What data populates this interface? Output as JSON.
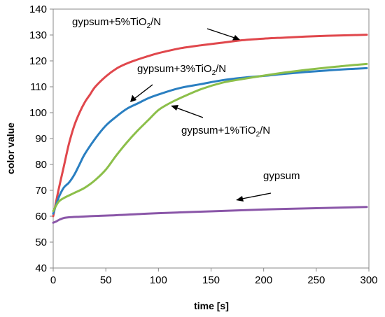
{
  "chart_data": {
    "type": "line",
    "title": "",
    "xlabel": "time [s]",
    "ylabel": "color value",
    "xlim": [
      0,
      300
    ],
    "ylim": [
      40,
      140
    ],
    "xticks": [
      0,
      50,
      100,
      150,
      200,
      250,
      300
    ],
    "yticks": [
      40,
      50,
      60,
      70,
      80,
      90,
      100,
      110,
      120,
      130,
      140
    ],
    "grid": false,
    "legend": "none",
    "series": [
      {
        "name": "gypsum+5%TiO2/N",
        "color": "#e0474c",
        "x": [
          0,
          5,
          10,
          15,
          20,
          25,
          30,
          35,
          40,
          50,
          60,
          70,
          80,
          90,
          100,
          120,
          140,
          160,
          180,
          200,
          220,
          240,
          260,
          280,
          298
        ],
        "y": [
          60,
          70,
          79,
          88,
          95,
          100,
          104,
          107,
          110,
          114,
          117,
          119,
          120.5,
          121.8,
          123,
          124.8,
          126,
          127,
          128,
          128.6,
          129,
          129.4,
          129.7,
          129.9,
          130.1
        ]
      },
      {
        "name": "gypsum+3%TiO2/N",
        "color": "#2a7fc1",
        "x": [
          0,
          5,
          10,
          15,
          20,
          25,
          30,
          40,
          50,
          60,
          70,
          80,
          90,
          100,
          120,
          140,
          160,
          180,
          200,
          220,
          240,
          260,
          280,
          298
        ],
        "y": [
          61,
          67,
          71,
          73,
          76,
          80,
          84,
          90,
          95,
          98.5,
          101.5,
          103.5,
          105.5,
          107,
          109.5,
          111,
          112.5,
          113.5,
          114.2,
          115,
          115.7,
          116.3,
          116.8,
          117.2
        ]
      },
      {
        "name": "gypsum+1%TiO2/N",
        "color": "#8cbf4a",
        "x": [
          0,
          5,
          10,
          15,
          20,
          30,
          40,
          50,
          60,
          70,
          80,
          90,
          100,
          110,
          120,
          140,
          160,
          180,
          200,
          220,
          240,
          260,
          280,
          298
        ],
        "y": [
          62,
          65.5,
          67,
          68,
          69,
          71,
          74,
          78,
          83.5,
          88.5,
          93,
          97,
          101,
          103.5,
          105.5,
          109,
          111.5,
          113,
          114.3,
          115.5,
          116.5,
          117.4,
          118.2,
          118.8
        ]
      },
      {
        "name": "gypsum",
        "color": "#8a56a8",
        "x": [
          0,
          3,
          6,
          10,
          15,
          25,
          40,
          60,
          80,
          100,
          150,
          200,
          250,
          298
        ],
        "y": [
          57.5,
          58,
          58.7,
          59.3,
          59.6,
          59.8,
          60.1,
          60.4,
          60.8,
          61.2,
          61.9,
          62.6,
          63.1,
          63.6
        ]
      }
    ],
    "annotations": [
      {
        "text": "gypsum+5%TiO",
        "sub": "2",
        "tail": "/N",
        "label_for": "gypsum+5%TiO2/N"
      },
      {
        "text": "gypsum+3%TiO",
        "sub": "2",
        "tail": "/N",
        "label_for": "gypsum+3%TiO2/N"
      },
      {
        "text": "gypsum+1%TiO",
        "sub": "2",
        "tail": "/N",
        "label_for": "gypsum+1%TiO2/N"
      },
      {
        "text": "gypsum",
        "sub": "",
        "tail": "",
        "label_for": "gypsum"
      }
    ]
  }
}
